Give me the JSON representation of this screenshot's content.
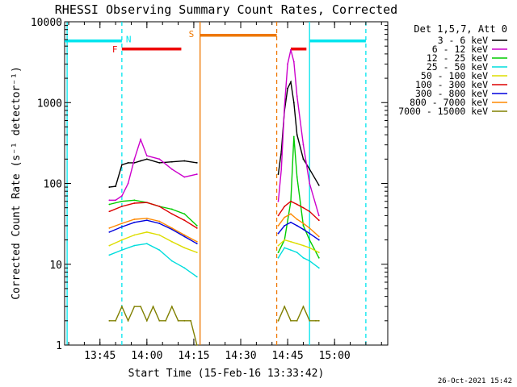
{
  "chart_data": {
    "type": "line",
    "title": "RHESSI Observing Summary Count Rates, Corrected",
    "xlabel": "Start Time (15-Feb-16 13:33:42)",
    "ylabel": "Corrected Count Rate (s⁻¹ detector⁻¹)",
    "log_y": true,
    "ylim": [
      1,
      10000
    ],
    "xlim": [
      "13:33:42",
      "15:17:00"
    ],
    "xtick_labels": [
      "13:45",
      "14:00",
      "14:15",
      "14:30",
      "14:45",
      "15:00"
    ],
    "ytick_labels": [
      "1",
      "10",
      "100",
      "1000",
      "10000"
    ],
    "legend_title": "Det 1,5,7, Att 0",
    "legend_position": "outside-right",
    "timestamp": "26-Oct-2021 15:42",
    "segments": [
      {
        "start": "13:38:00",
        "end": "14:16:30"
      },
      {
        "start": "14:41:30",
        "end": "14:57:00"
      }
    ],
    "series": [
      {
        "name": "3 - 6 keV",
        "color": "#000000",
        "x": [
          "13:48",
          "13:50",
          "13:52",
          "13:54",
          "13:56",
          "13:58",
          "14:00",
          "14:04",
          "14:08",
          "14:12",
          "14:16",
          "14:42",
          "14:43",
          "14:44",
          "14:45",
          "14:46",
          "14:47",
          "14:48",
          "14:50",
          "14:52",
          "14:55"
        ],
        "y": [
          90,
          92,
          170,
          180,
          180,
          190,
          200,
          180,
          185,
          190,
          180,
          130,
          250,
          800,
          1500,
          1800,
          1000,
          400,
          200,
          150,
          95
        ]
      },
      {
        "name": "6 - 12 keV",
        "color": "#cc00cc",
        "x": [
          "13:48",
          "13:50",
          "13:52",
          "13:54",
          "13:56",
          "13:58",
          "14:00",
          "14:04",
          "14:08",
          "14:12",
          "14:16",
          "14:42",
          "14:43",
          "14:44",
          "14:45",
          "14:46",
          "14:47",
          "14:48",
          "14:50",
          "14:52",
          "14:55"
        ],
        "y": [
          62,
          62,
          70,
          100,
          200,
          350,
          220,
          200,
          150,
          120,
          130,
          60,
          150,
          900,
          3000,
          4500,
          3200,
          1200,
          300,
          100,
          40
        ]
      },
      {
        "name": "12 - 25 keV",
        "color": "#00cc00",
        "x": [
          "13:48",
          "13:52",
          "13:56",
          "14:00",
          "14:04",
          "14:08",
          "14:12",
          "14:16",
          "14:42",
          "14:44",
          "14:46",
          "14:47",
          "14:48",
          "14:50",
          "14:52",
          "14:55"
        ],
        "y": [
          55,
          60,
          62,
          58,
          52,
          48,
          42,
          30,
          14,
          20,
          60,
          380,
          120,
          30,
          20,
          12
        ]
      },
      {
        "name": "25 - 50 keV",
        "color": "#00dddd",
        "x": [
          "13:48",
          "13:52",
          "13:56",
          "14:00",
          "14:04",
          "14:08",
          "14:12",
          "14:16",
          "14:42",
          "14:44",
          "14:46",
          "14:48",
          "14:50",
          "14:52",
          "14:55"
        ],
        "y": [
          13,
          15,
          17,
          18,
          15,
          11,
          9,
          7,
          12,
          16,
          15,
          14,
          12,
          11,
          9
        ]
      },
      {
        "name": "50 - 100 keV",
        "color": "#dddd00",
        "x": [
          "13:48",
          "13:52",
          "13:56",
          "14:00",
          "14:04",
          "14:08",
          "14:12",
          "14:16",
          "14:42",
          "14:44",
          "14:46",
          "14:48",
          "14:50",
          "14:52",
          "14:55"
        ],
        "y": [
          17,
          20,
          23,
          25,
          23,
          19,
          16,
          14,
          17,
          20,
          19,
          18,
          17,
          16,
          14
        ]
      },
      {
        "name": "100 - 300 keV",
        "color": "#dd0000",
        "x": [
          "13:48",
          "13:52",
          "13:56",
          "14:00",
          "14:04",
          "14:08",
          "14:12",
          "14:16",
          "14:42",
          "14:44",
          "14:46",
          "14:48",
          "14:50",
          "14:52",
          "14:55"
        ],
        "y": [
          45,
          52,
          57,
          58,
          52,
          42,
          35,
          28,
          40,
          52,
          60,
          55,
          50,
          45,
          35
        ]
      },
      {
        "name": "300 - 800 keV",
        "color": "#0000dd",
        "x": [
          "13:48",
          "13:52",
          "13:56",
          "14:00",
          "14:04",
          "14:08",
          "14:12",
          "14:16",
          "14:42",
          "14:44",
          "14:46",
          "14:48",
          "14:50",
          "14:52",
          "14:55"
        ],
        "y": [
          25,
          29,
          33,
          35,
          32,
          27,
          22,
          18,
          24,
          30,
          33,
          30,
          27,
          24,
          20
        ]
      },
      {
        "name": "800 - 7000 keV",
        "color": "#ff8800",
        "x": [
          "13:48",
          "13:52",
          "13:56",
          "14:00",
          "14:04",
          "14:08",
          "14:12",
          "14:16",
          "14:42",
          "14:44",
          "14:46",
          "14:48",
          "14:50",
          "14:52",
          "14:55"
        ],
        "y": [
          28,
          32,
          36,
          37,
          34,
          28,
          23,
          19,
          30,
          38,
          42,
          36,
          32,
          28,
          22
        ]
      },
      {
        "name": "7000 - 15000 keV",
        "color": "#808000",
        "x": [
          "13:48",
          "13:50",
          "13:52",
          "13:54",
          "13:56",
          "13:58",
          "14:00",
          "14:02",
          "14:04",
          "14:06",
          "14:08",
          "14:10",
          "14:12",
          "14:14",
          "14:16",
          "14:42",
          "14:44",
          "14:46",
          "14:48",
          "14:50",
          "14:52",
          "14:54",
          "14:55"
        ],
        "y": [
          2,
          2,
          3,
          2,
          3,
          3,
          2,
          3,
          2,
          2,
          3,
          2,
          2,
          2,
          1,
          2,
          3,
          2,
          2,
          3,
          2,
          2,
          2
        ]
      }
    ],
    "flags": [
      {
        "label": "N",
        "color": "#00e5ee",
        "spans": [
          {
            "start": "13:33:42",
            "end": "13:52:00"
          },
          {
            "start": "14:52:00",
            "end": "15:10:00"
          }
        ],
        "level": 5800
      },
      {
        "label": "F",
        "color": "#ee0000",
        "spans": [
          {
            "start": "13:52:00",
            "end": "14:11:00"
          },
          {
            "start": "14:46:00",
            "end": "14:51:00"
          }
        ],
        "level": 4600
      },
      {
        "label": "S",
        "color": "#ee7700",
        "spans": [
          {
            "start": "14:17:00",
            "end": "14:41:30"
          }
        ],
        "level": 6800
      }
    ],
    "vertical_markers": [
      {
        "time": "13:34:30",
        "color": "#00e5ee",
        "style": "solid"
      },
      {
        "time": "13:52:00",
        "color": "#00e5ee",
        "style": "dashed"
      },
      {
        "time": "14:17:00",
        "color": "#ee7700",
        "style": "solid"
      },
      {
        "time": "14:41:30",
        "color": "#ee7700",
        "style": "dashed"
      },
      {
        "time": "14:52:00",
        "color": "#00e5ee",
        "style": "solid"
      },
      {
        "time": "15:10:00",
        "color": "#00e5ee",
        "style": "dashed"
      }
    ]
  }
}
